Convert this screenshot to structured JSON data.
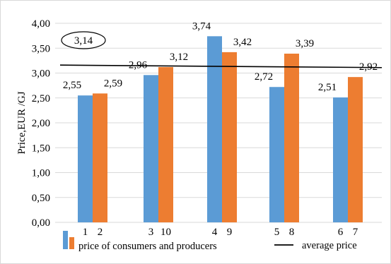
{
  "chart_data": {
    "type": "bar",
    "ylabel": "Price,EUR /GJ",
    "ylim": [
      0,
      4
    ],
    "y_ticks": [
      "0,00",
      "0,50",
      "1,00",
      "1,50",
      "2,00",
      "2,50",
      "3,00",
      "3,50",
      "4,00"
    ],
    "grid": true,
    "legend_position": "bottom",
    "groups": [
      {
        "consumer_label": "1",
        "producer_label": "2",
        "consumer_value": 2.55,
        "producer_value": 2.59,
        "consumer_text": "2,55",
        "producer_text": "2,59"
      },
      {
        "consumer_label": "3",
        "producer_label": "10",
        "consumer_value": 2.96,
        "producer_value": 3.12,
        "consumer_text": "2,96",
        "producer_text": "3,12"
      },
      {
        "consumer_label": "4",
        "producer_label": "9",
        "consumer_value": 3.74,
        "producer_value": 3.42,
        "consumer_text": "3,74",
        "producer_text": "3,42"
      },
      {
        "consumer_label": "5",
        "producer_label": "8",
        "consumer_value": 2.72,
        "producer_value": 3.39,
        "consumer_text": "2,72",
        "producer_text": "3,39"
      },
      {
        "consumer_label": "6",
        "producer_label": "7",
        "consumer_value": 2.51,
        "producer_value": 2.92,
        "consumer_text": "2,51",
        "producer_text": "2,92"
      }
    ],
    "average": {
      "start": 3.16,
      "end": 3.11,
      "label": "3,14"
    },
    "legend": {
      "bars_label": "price of consumers and producers",
      "line_label": "average price"
    },
    "colors": {
      "consumers": "#5b9bd5",
      "producers": "#ed7d31",
      "average_line": "#000000",
      "grid": "#d9d9d9"
    }
  }
}
